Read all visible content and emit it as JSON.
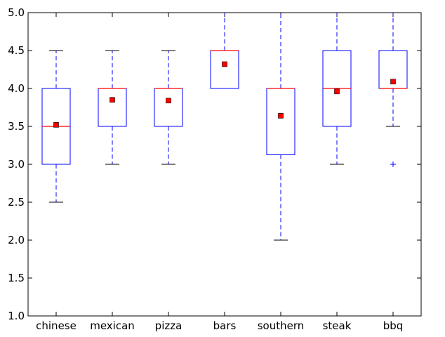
{
  "chart_data": {
    "type": "box",
    "title": "",
    "xlabel": "",
    "ylabel": "",
    "categories": [
      "chinese",
      "mexican",
      "pizza",
      "bars",
      "southern",
      "steak",
      "bbq"
    ],
    "ylim": [
      1.0,
      5.0
    ],
    "yticks": [
      "1.0",
      "1.5",
      "2.0",
      "2.5",
      "3.0",
      "3.5",
      "4.0",
      "4.5",
      "5.0"
    ],
    "grid": false,
    "boxes": [
      {
        "category": "chinese",
        "whisker_low": 2.5,
        "q1": 3.0,
        "median": 3.5,
        "q3": 4.0,
        "whisker_high": 4.5,
        "mean": 3.52,
        "outliers": []
      },
      {
        "category": "mexican",
        "whisker_low": 3.0,
        "q1": 3.5,
        "median": 4.0,
        "q3": 4.0,
        "whisker_high": 4.5,
        "mean": 3.85,
        "outliers": []
      },
      {
        "category": "pizza",
        "whisker_low": 3.0,
        "q1": 3.5,
        "median": 4.0,
        "q3": 4.0,
        "whisker_high": 4.5,
        "mean": 3.84,
        "outliers": []
      },
      {
        "category": "bars",
        "whisker_low": 4.0,
        "q1": 4.0,
        "median": 4.5,
        "q3": 4.5,
        "whisker_high": 5.0,
        "mean": 4.32,
        "outliers": []
      },
      {
        "category": "southern",
        "whisker_low": 2.0,
        "q1": 3.125,
        "median": 4.0,
        "q3": 4.0,
        "whisker_high": 5.0,
        "mean": 3.64,
        "outliers": []
      },
      {
        "category": "steak",
        "whisker_low": 3.0,
        "q1": 3.5,
        "median": 4.0,
        "q3": 4.5,
        "whisker_high": 5.0,
        "mean": 3.96,
        "outliers": []
      },
      {
        "category": "bbq",
        "whisker_low": 3.5,
        "q1": 4.0,
        "median": 4.0,
        "q3": 4.5,
        "whisker_high": 5.0,
        "mean": 4.09,
        "outliers": [
          3.0
        ]
      }
    ],
    "colors": {
      "box": "#0000ff",
      "median": "#ff0000",
      "mean_marker": "#ff0000",
      "cap": "#000000",
      "outlier": "#0000ff"
    }
  }
}
